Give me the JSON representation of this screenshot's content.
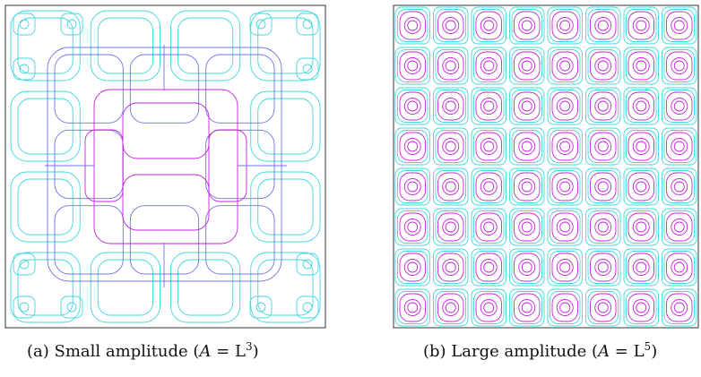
{
  "figures": [
    {
      "caption_prefix": "(a) Small amplitude (",
      "caption_var": "A",
      "caption_eq": " = L",
      "caption_exp": "3",
      "caption_suffix": ")"
    },
    {
      "caption_prefix": "(b) Large amplitude (",
      "caption_var": "A",
      "caption_eq": " = L",
      "caption_exp": "5",
      "caption_suffix": ")"
    }
  ],
  "colors": {
    "outer": "#43d6dc",
    "mid": "#6f74e8",
    "inner": "#c424d8",
    "frame": "#333333"
  },
  "chart_data": [
    {
      "type": "contour",
      "grid": [
        4,
        4
      ],
      "levels": 4,
      "colormap": [
        "cyan",
        "blue-violet",
        "magenta"
      ]
    },
    {
      "type": "contour",
      "grid": [
        8,
        8
      ],
      "levels": 4,
      "colormap": [
        "cyan",
        "magenta"
      ]
    }
  ]
}
